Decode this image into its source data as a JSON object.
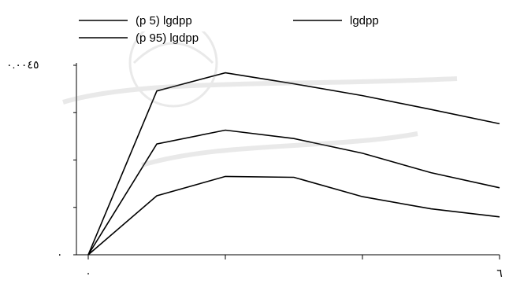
{
  "chart_data": {
    "type": "line",
    "x": [
      0,
      1,
      2,
      3,
      4,
      5,
      6
    ],
    "series": [
      {
        "name": "lgdpp",
        "values": [
          0.0,
          0.00389,
          0.00432,
          0.00406,
          0.00378,
          0.00345,
          0.00311
        ]
      },
      {
        "name": "(p 5) lgdpp",
        "values": [
          0.0,
          0.00263,
          0.00296,
          0.00276,
          0.00241,
          0.00195,
          0.00159
        ]
      },
      {
        "name": "(p 95) lgdpp",
        "values": [
          0.0,
          0.0014,
          0.00186,
          0.00184,
          0.00138,
          0.00109,
          0.0009
        ]
      }
    ],
    "xlim": [
      0,
      6
    ],
    "ylim": [
      0,
      0.0045
    ],
    "ytick_labels": [
      {
        "value": 0,
        "label": "٠"
      },
      {
        "value": 0.0045,
        "label": "٠.٠٠٤٥"
      }
    ],
    "xtick_labels": [
      {
        "value": 0,
        "label": "٠"
      },
      {
        "value": 6,
        "label": "٦"
      }
    ],
    "legend": [
      "(p 5) lgdpp",
      "lgdpp",
      "(p 95) lgdpp"
    ],
    "legend_position": "top",
    "grid": false,
    "line_color": "#000000"
  }
}
